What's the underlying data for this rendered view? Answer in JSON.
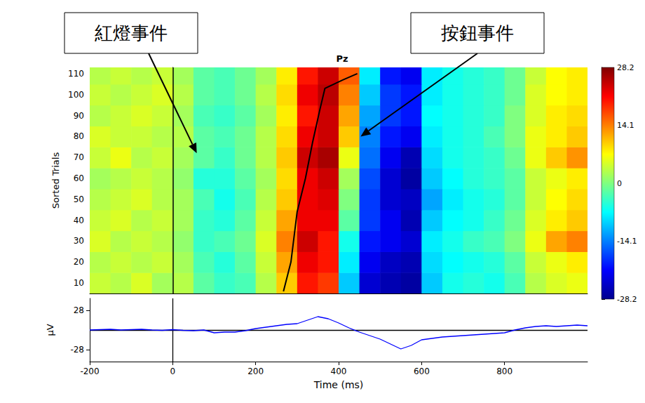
{
  "chart_data": [
    {
      "type": "heatmap",
      "title": "Pz",
      "ylabel": "Sorted Trials",
      "tick_labels": "y",
      "xlim": [
        -200,
        1000
      ],
      "ylim": [
        5,
        113
      ],
      "yticks": [
        10,
        20,
        30,
        40,
        50,
        60,
        70,
        80,
        90,
        100,
        110
      ],
      "x_bins": [
        -200,
        -150,
        -100,
        -50,
        0,
        50,
        100,
        150,
        200,
        250,
        300,
        350,
        400,
        450,
        500,
        550,
        600,
        650,
        700,
        750,
        800,
        850,
        900,
        950,
        1000
      ],
      "y_bins": [
        5,
        15,
        25,
        35,
        45,
        55,
        65,
        75,
        85,
        95,
        105,
        113
      ],
      "values": [
        [
          4,
          3,
          5,
          2,
          3,
          -2,
          -4,
          -3,
          3,
          10,
          20,
          18,
          -10,
          -24,
          -26,
          -27,
          -10,
          -6,
          -5,
          -6,
          -3,
          3,
          5,
          6
        ],
        [
          3,
          4,
          3,
          4,
          2,
          -3,
          -5,
          -2,
          4,
          12,
          22,
          20,
          -8,
          -22,
          -25,
          -26,
          -9,
          -7,
          -6,
          -5,
          -2,
          4,
          6,
          8
        ],
        [
          5,
          3,
          4,
          3,
          1,
          -4,
          -3,
          -1,
          5,
          14,
          24,
          20,
          -6,
          -20,
          -22,
          -24,
          -8,
          -6,
          -4,
          -3,
          0,
          6,
          12,
          14
        ],
        [
          4,
          5,
          3,
          4,
          2,
          -4,
          -5,
          -2,
          4,
          12,
          22,
          22,
          -2,
          -18,
          -22,
          -26,
          -10,
          -7,
          -6,
          -4,
          -1,
          5,
          8,
          10
        ],
        [
          3,
          4,
          5,
          3,
          2,
          -3,
          -6,
          -3,
          3,
          10,
          22,
          23,
          0,
          -18,
          -24,
          -25,
          -12,
          -8,
          -6,
          -5,
          -2,
          4,
          7,
          9
        ],
        [
          2,
          3,
          4,
          3,
          1,
          -5,
          -5,
          -2,
          2,
          9,
          22,
          24,
          2,
          -17,
          -24,
          -27,
          -10,
          -7,
          -5,
          -4,
          -2,
          4,
          6,
          8
        ],
        [
          4,
          6,
          3,
          4,
          2,
          -2,
          -4,
          -1,
          3,
          10,
          24,
          26,
          6,
          -15,
          -22,
          -26,
          -9,
          -6,
          -5,
          -4,
          -1,
          6,
          10,
          13
        ],
        [
          5,
          4,
          4,
          3,
          3,
          -2,
          -3,
          -1,
          3,
          9,
          22,
          24,
          10,
          -14,
          -20,
          -22,
          -8,
          -6,
          -5,
          -3,
          0,
          6,
          8,
          10
        ],
        [
          3,
          4,
          5,
          4,
          2,
          -3,
          -4,
          -2,
          2,
          8,
          20,
          24,
          12,
          -12,
          -18,
          -20,
          -7,
          -6,
          -5,
          -4,
          0,
          5,
          8,
          9
        ],
        [
          4,
          3,
          4,
          5,
          3,
          -2,
          -3,
          -1,
          3,
          9,
          22,
          25,
          14,
          -10,
          -18,
          -20,
          -8,
          -6,
          -5,
          -4,
          -1,
          5,
          7,
          8
        ],
        [
          3,
          4,
          3,
          4,
          2,
          -2,
          -3,
          -1,
          2,
          8,
          20,
          24,
          16,
          -8,
          -20,
          -22,
          -8,
          -6,
          -5,
          -4,
          -1,
          4,
          7,
          8
        ]
      ],
      "color_range": [
        -28.2,
        28.2
      ],
      "color_ticks": [
        -28.2,
        -14.1,
        0,
        14.1,
        28.2
      ],
      "curve": {
        "x": [
          267,
          285,
          300,
          320,
          337,
          355,
          367,
          410,
          445
        ],
        "y": [
          6,
          20,
          44,
          60,
          77,
          93,
          103,
          107,
          110
        ],
        "color": "#000000"
      },
      "event_line": 0,
      "annotations": [
        {
          "text": "紅燈事件",
          "x": 58,
          "y": 72
        },
        {
          "text": "按鈕事件",
          "x": 453,
          "y": 80
        }
      ]
    },
    {
      "type": "line",
      "xlabel": "Time (ms)",
      "ylabel": "μV",
      "xlim": [
        -200,
        1000
      ],
      "xticks": [
        -200,
        0,
        200,
        400,
        600,
        800
      ],
      "ylim": [
        -45,
        45
      ],
      "yticks": [
        -28,
        28
      ],
      "x": [
        -200,
        -175,
        -150,
        -125,
        -100,
        -75,
        -50,
        -25,
        0,
        25,
        50,
        75,
        100,
        125,
        150,
        175,
        200,
        225,
        250,
        275,
        300,
        325,
        350,
        375,
        400,
        425,
        450,
        475,
        500,
        525,
        550,
        575,
        600,
        625,
        650,
        675,
        700,
        725,
        750,
        775,
        800,
        825,
        850,
        875,
        900,
        925,
        950,
        975,
        1000
      ],
      "values": [
        0,
        0.5,
        1,
        0,
        0.5,
        1,
        0,
        -0.5,
        0.5,
        -0.5,
        -1,
        0,
        -4,
        -3,
        -3,
        -1,
        2,
        4,
        6,
        8,
        9,
        14,
        19,
        16,
        10,
        3,
        -3,
        -8,
        -13,
        -20,
        -27,
        -22,
        -14,
        -12,
        -10,
        -9,
        -8,
        -7,
        -6,
        -5,
        -4,
        0,
        3,
        5,
        6,
        5,
        6,
        7,
        6
      ],
      "color": "#0000ff",
      "baseline": 0,
      "event_line": 0
    }
  ]
}
